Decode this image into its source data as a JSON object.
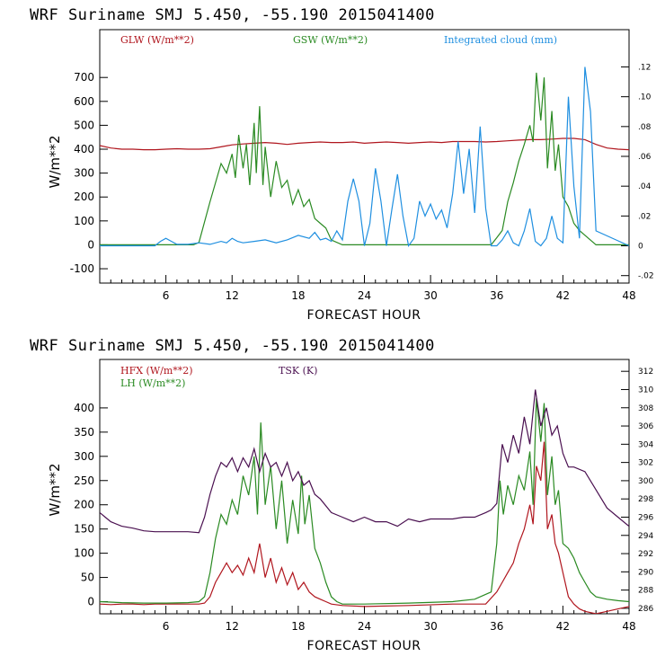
{
  "charts": [
    {
      "title": "WRF   Suriname SMJ   5.450, -55.190  2015041400",
      "xlabel": "FORECAST HOUR",
      "ylabel": "W/m**2",
      "legend": [
        {
          "label": "GLW (W/m**2)",
          "color": "#b0161e"
        },
        {
          "label": "GSW (W/m**2)",
          "color": "#2a8a22"
        },
        {
          "label": "Integrated cloud (mm)",
          "color": "#1f8fe0"
        }
      ],
      "xticks": [
        "6",
        "12",
        "18",
        "24",
        "30",
        "36",
        "42",
        "48"
      ],
      "yticks": [
        "-100",
        "0",
        "100",
        "200",
        "300",
        "400",
        "500",
        "600",
        "700"
      ],
      "rticks": [
        "-.02",
        "0",
        ".02",
        ".04",
        ".06",
        ".08",
        ".10",
        ".12"
      ]
    },
    {
      "title": "WRF   Suriname SMJ   5.450, -55.190  2015041400",
      "xlabel": "FORECAST HOUR",
      "ylabel": "W/m**2",
      "legend": [
        {
          "label": "HFX (W/m**2)",
          "color": "#b0161e"
        },
        {
          "label": "LH  (W/m**2)",
          "color": "#2a8a22"
        },
        {
          "label": "TSK (K)",
          "color": "#4a1050"
        }
      ],
      "xticks": [
        "6",
        "12",
        "18",
        "24",
        "30",
        "36",
        "42",
        "48"
      ],
      "yticks": [
        "0",
        "50",
        "100",
        "150",
        "200",
        "250",
        "300",
        "350",
        "400"
      ],
      "rticks": [
        "286",
        "288",
        "290",
        "292",
        "294",
        "296",
        "298",
        "300",
        "302",
        "304",
        "306",
        "308",
        "310",
        "312"
      ]
    }
  ],
  "chart_data": [
    {
      "type": "line",
      "title": "WRF   Suriname SMJ   5.450, -55.190  2015041400",
      "xlabel": "FORECAST HOUR",
      "ylabel": "W/m**2",
      "xlim": [
        0,
        48
      ],
      "ylim": [
        -160,
        900
      ],
      "y2lim": [
        -0.025,
        0.145
      ],
      "series": [
        {
          "name": "GLW (W/m**2)",
          "axis": "left",
          "color": "#b0161e",
          "x": [
            0,
            1,
            2,
            3,
            4,
            5,
            6,
            7,
            8,
            9,
            10,
            11,
            12,
            13,
            14,
            15,
            16,
            17,
            18,
            19,
            20,
            21,
            22,
            23,
            24,
            25,
            26,
            27,
            28,
            29,
            30,
            31,
            32,
            33,
            34,
            35,
            36,
            37,
            38,
            39,
            40,
            41,
            42,
            43,
            44,
            45,
            46,
            47,
            48
          ],
          "y": [
            415,
            405,
            400,
            400,
            398,
            398,
            400,
            402,
            400,
            400,
            402,
            410,
            418,
            422,
            425,
            428,
            425,
            420,
            425,
            428,
            430,
            428,
            428,
            430,
            425,
            428,
            430,
            428,
            425,
            428,
            430,
            428,
            432,
            432,
            432,
            430,
            432,
            435,
            438,
            440,
            440,
            442,
            445,
            445,
            440,
            420,
            405,
            400,
            398
          ]
        },
        {
          "name": "GSW (W/m**2)",
          "axis": "left",
          "color": "#2a8a22",
          "x": [
            0,
            8.5,
            9,
            10,
            11,
            11.5,
            12,
            12.3,
            12.6,
            13,
            13.3,
            13.6,
            14,
            14.2,
            14.5,
            14.8,
            15,
            15.5,
            16,
            16.5,
            17,
            17.5,
            18,
            18.5,
            19,
            19.5,
            20,
            20.5,
            21,
            22,
            25,
            30,
            34,
            35.5,
            36,
            36.5,
            37,
            37.5,
            38,
            38.5,
            39,
            39.3,
            39.6,
            40,
            40.3,
            40.6,
            41,
            41.3,
            41.6,
            42,
            42.5,
            43,
            43.5,
            44,
            45,
            48
          ],
          "y": [
            0,
            0,
            10,
            180,
            340,
            300,
            380,
            280,
            460,
            320,
            420,
            250,
            510,
            300,
            580,
            250,
            410,
            200,
            350,
            240,
            270,
            170,
            230,
            160,
            190,
            110,
            90,
            70,
            20,
            0,
            0,
            0,
            0,
            0,
            30,
            60,
            180,
            260,
            350,
            420,
            500,
            430,
            720,
            520,
            700,
            320,
            560,
            310,
            420,
            200,
            160,
            90,
            60,
            40,
            0,
            0
          ]
        },
        {
          "name": "Integrated cloud (mm)",
          "axis": "right",
          "color": "#1f8fe0",
          "x": [
            0,
            5,
            5.5,
            6,
            6.5,
            7,
            8,
            9,
            10,
            11,
            11.5,
            12,
            12.5,
            13,
            14,
            15,
            16,
            17,
            18,
            19,
            19.5,
            20,
            20.5,
            21,
            21.5,
            22,
            22.5,
            23,
            23.5,
            24,
            24.5,
            25,
            25.5,
            26,
            26.5,
            27,
            27.5,
            28,
            28.5,
            29,
            29.5,
            30,
            30.5,
            31,
            31.5,
            32,
            32.5,
            33,
            33.5,
            34,
            34.5,
            35,
            35.5,
            36,
            36.5,
            37,
            37.5,
            38,
            38.5,
            39,
            39.5,
            40,
            40.5,
            41,
            41.5,
            42,
            42.5,
            43,
            43.5,
            44,
            44.5,
            45,
            48
          ],
          "y": [
            0,
            0,
            0.003,
            0.005,
            0.003,
            0.001,
            0.001,
            0.002,
            0.001,
            0.003,
            0.002,
            0.005,
            0.003,
            0.002,
            0.003,
            0.004,
            0.002,
            0.004,
            0.007,
            0.005,
            0.009,
            0.004,
            0.005,
            0.003,
            0.01,
            0.004,
            0.03,
            0.045,
            0.03,
            0,
            0.015,
            0.052,
            0.03,
            0,
            0.025,
            0.048,
            0.02,
            0,
            0.005,
            0.03,
            0.02,
            0.028,
            0.018,
            0.024,
            0.012,
            0.035,
            0.07,
            0.035,
            0.065,
            0.022,
            0.08,
            0.025,
            0,
            0,
            0.004,
            0.01,
            0.002,
            0,
            0.01,
            0.025,
            0.003,
            0,
            0.005,
            0.02,
            0.005,
            0.002,
            0.1,
            0.04,
            0.005,
            0.12,
            0.09,
            0.01,
            0
          ]
        }
      ]
    },
    {
      "type": "line",
      "title": "WRF   Suriname SMJ   5.450, -55.190  2015041400",
      "xlabel": "FORECAST HOUR",
      "ylabel": "W/m**2",
      "xlim": [
        0,
        48
      ],
      "ylim": [
        -25,
        500
      ],
      "y2lim": [
        285.4,
        313.3
      ],
      "series": [
        {
          "name": "HFX (W/m**2)",
          "axis": "left",
          "color": "#b0161e",
          "x": [
            0,
            1,
            2,
            3,
            4,
            5,
            6,
            7,
            8,
            9,
            9.5,
            10,
            10.5,
            11,
            11.5,
            12,
            12.5,
            13,
            13.5,
            14,
            14.5,
            15,
            15.5,
            16,
            16.5,
            17,
            17.5,
            18,
            18.5,
            19,
            19.5,
            20,
            20.5,
            21,
            22,
            24,
            28,
            32,
            35,
            36,
            36.5,
            37,
            37.5,
            38,
            38.5,
            39,
            39.3,
            39.6,
            40,
            40.3,
            40.6,
            41,
            41.3,
            41.6,
            42,
            42.5,
            43,
            43.5,
            44,
            45,
            46,
            47,
            48
          ],
          "y": [
            -5,
            -6,
            -5,
            -5,
            -6,
            -5,
            -5,
            -5,
            -5,
            -5,
            -3,
            10,
            40,
            60,
            80,
            60,
            75,
            55,
            90,
            60,
            120,
            50,
            90,
            40,
            70,
            35,
            60,
            25,
            40,
            20,
            10,
            5,
            0,
            -5,
            -8,
            -10,
            -8,
            -5,
            -5,
            20,
            40,
            60,
            80,
            120,
            150,
            200,
            160,
            280,
            250,
            330,
            150,
            180,
            120,
            100,
            60,
            10,
            -5,
            -15,
            -20,
            -25,
            -20,
            -15,
            -10
          ]
        },
        {
          "name": "LH  (W/m**2)",
          "axis": "left",
          "color": "#2a8a22",
          "x": [
            0,
            2,
            4,
            6,
            8,
            9,
            9.5,
            10,
            10.5,
            11,
            11.5,
            12,
            12.5,
            13,
            13.5,
            14,
            14.3,
            14.6,
            15,
            15.5,
            16,
            16.5,
            17,
            17.5,
            18,
            18.3,
            18.6,
            19,
            19.5,
            20,
            20.5,
            21,
            21.5,
            22,
            24,
            28,
            32,
            34,
            35.5,
            36,
            36.3,
            36.6,
            37,
            37.5,
            38,
            38.5,
            39,
            39.3,
            39.6,
            40,
            40.3,
            40.6,
            41,
            41.3,
            41.6,
            42,
            42.5,
            43,
            43.5,
            44,
            44.5,
            45,
            46,
            47,
            48
          ],
          "y": [
            0,
            -2,
            -3,
            -3,
            -2,
            0,
            10,
            60,
            130,
            180,
            160,
            210,
            180,
            260,
            220,
            300,
            180,
            370,
            200,
            280,
            150,
            250,
            120,
            210,
            140,
            260,
            160,
            220,
            110,
            80,
            40,
            10,
            0,
            -5,
            -5,
            -3,
            0,
            5,
            20,
            120,
            250,
            180,
            240,
            200,
            260,
            230,
            310,
            200,
            420,
            330,
            410,
            220,
            300,
            200,
            230,
            120,
            110,
            90,
            60,
            40,
            20,
            10,
            5,
            2,
            0
          ]
        },
        {
          "name": "TSK (K)",
          "axis": "right",
          "color": "#4a1050",
          "x": [
            0,
            0.5,
            1,
            2,
            3,
            4,
            5,
            6,
            7,
            8,
            9,
            9.5,
            10,
            10.5,
            11,
            11.5,
            12,
            12.5,
            13,
            13.5,
            14,
            14.5,
            15,
            15.5,
            16,
            16.5,
            17,
            17.5,
            18,
            18.5,
            19,
            19.5,
            20,
            21,
            22,
            23,
            24,
            25,
            26,
            27,
            28,
            29,
            30,
            31,
            32,
            33,
            34,
            35,
            35.5,
            36,
            36.5,
            37,
            37.5,
            38,
            38.5,
            39,
            39.5,
            40,
            40.5,
            41,
            41.5,
            42,
            42.5,
            43,
            44,
            45,
            46,
            47,
            48
          ],
          "y": [
            296.5,
            296,
            295.5,
            295,
            294.8,
            294.5,
            294.4,
            294.4,
            294.4,
            294.4,
            294.3,
            296,
            298.5,
            300.5,
            302,
            301.5,
            302.5,
            301,
            302.5,
            301.5,
            303.5,
            301,
            303,
            301.5,
            302,
            300.5,
            302,
            300,
            301,
            299.5,
            300,
            298.5,
            298,
            296.5,
            296,
            295.5,
            296,
            295.5,
            295.5,
            295,
            295.8,
            295.5,
            295.8,
            295.8,
            295.8,
            296,
            296,
            296.5,
            296.8,
            297.5,
            304,
            302,
            305,
            303,
            307,
            304,
            310,
            306,
            308,
            305,
            306,
            303,
            301.5,
            301.5,
            301,
            299,
            297,
            296,
            295
          ]
        }
      ]
    }
  ]
}
